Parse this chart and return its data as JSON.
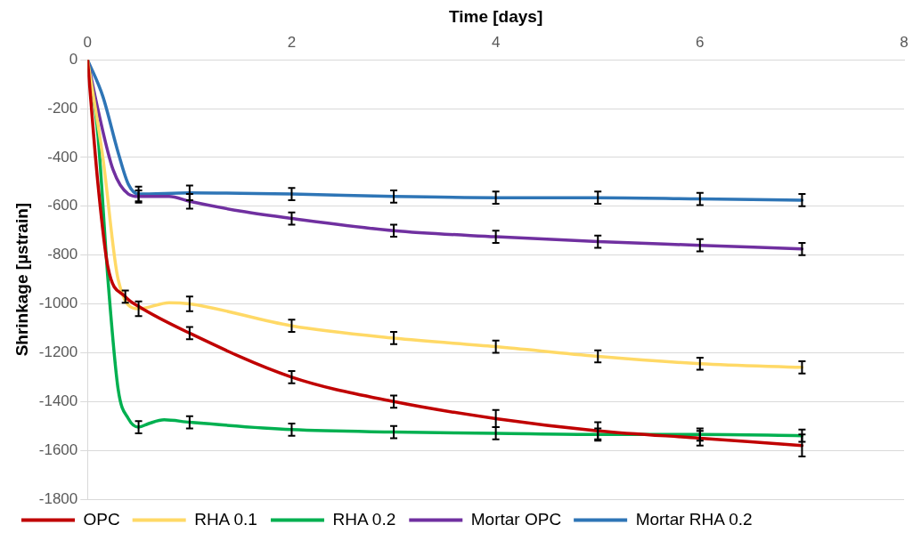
{
  "chart_data": {
    "type": "line",
    "xlabel": "Time [days]",
    "ylabel": "Shrinkage [µstrain]",
    "xlim": [
      0,
      8
    ],
    "xticks": [
      0,
      2,
      4,
      6,
      8
    ],
    "ylim": [
      -1800,
      0
    ],
    "yticks": [
      -1800,
      -1600,
      -1400,
      -1200,
      -1000,
      -800,
      -600,
      -400,
      -200,
      0
    ],
    "grid": "y",
    "legend": "bottom",
    "marker": "none",
    "line_style": "solid",
    "series": [
      {
        "name": "OPC",
        "color": "#c00000",
        "x": [
          0,
          0.1,
          0.2,
          0.37,
          0.5,
          1,
          2,
          3,
          4,
          5,
          6,
          7
        ],
        "values": [
          0,
          -500,
          -850,
          -970,
          -1010,
          -1120,
          -1300,
          -1400,
          -1470,
          -1520,
          -1550,
          -1580
        ],
        "errors": [
          null,
          null,
          null,
          25,
          null,
          25,
          25,
          25,
          35,
          35,
          30,
          45
        ]
      },
      {
        "name": "RHA 0.1",
        "color": "#ffd966",
        "x": [
          0,
          0.15,
          0.3,
          0.5,
          0.8,
          1,
          2,
          3,
          4,
          5,
          6,
          7
        ],
        "values": [
          0,
          -400,
          -900,
          -1020,
          -995,
          -1000,
          -1090,
          -1140,
          -1175,
          -1215,
          -1245,
          -1260
        ],
        "errors": [
          null,
          null,
          null,
          30,
          null,
          30,
          25,
          25,
          25,
          25,
          25,
          25
        ]
      },
      {
        "name": "RHA 0.2",
        "color": "#00b050",
        "x": [
          0,
          0.1,
          0.2,
          0.3,
          0.4,
          0.5,
          0.6,
          0.75,
          1,
          2,
          3,
          4,
          5,
          6,
          7
        ],
        "values": [
          0,
          -300,
          -900,
          -1350,
          -1470,
          -1505,
          -1490,
          -1475,
          -1485,
          -1515,
          -1525,
          -1530,
          -1535,
          -1535,
          -1540
        ],
        "errors": [
          null,
          null,
          null,
          null,
          null,
          25,
          null,
          null,
          25,
          25,
          25,
          25,
          25,
          25,
          25
        ]
      },
      {
        "name": "Mortar OPC",
        "color": "#7030a0",
        "x": [
          0,
          0.1,
          0.25,
          0.4,
          0.5,
          0.8,
          1,
          1.5,
          2,
          3,
          4,
          5,
          6,
          7
        ],
        "values": [
          0,
          -200,
          -450,
          -550,
          -560,
          -560,
          -580,
          -620,
          -650,
          -700,
          -725,
          -745,
          -760,
          -775
        ],
        "errors": [
          null,
          null,
          null,
          null,
          25,
          null,
          30,
          null,
          25,
          25,
          25,
          25,
          25,
          25
        ]
      },
      {
        "name": "Mortar RHA 0.2",
        "color": "#2e75b6",
        "x": [
          0,
          0.15,
          0.3,
          0.4,
          0.5,
          1,
          2,
          3,
          4,
          5,
          6,
          7
        ],
        "values": [
          0,
          -150,
          -380,
          -510,
          -550,
          -545,
          -550,
          -560,
          -565,
          -565,
          -570,
          -575
        ],
        "errors": [
          null,
          null,
          null,
          null,
          30,
          30,
          25,
          25,
          25,
          25,
          25,
          25
        ]
      }
    ]
  }
}
